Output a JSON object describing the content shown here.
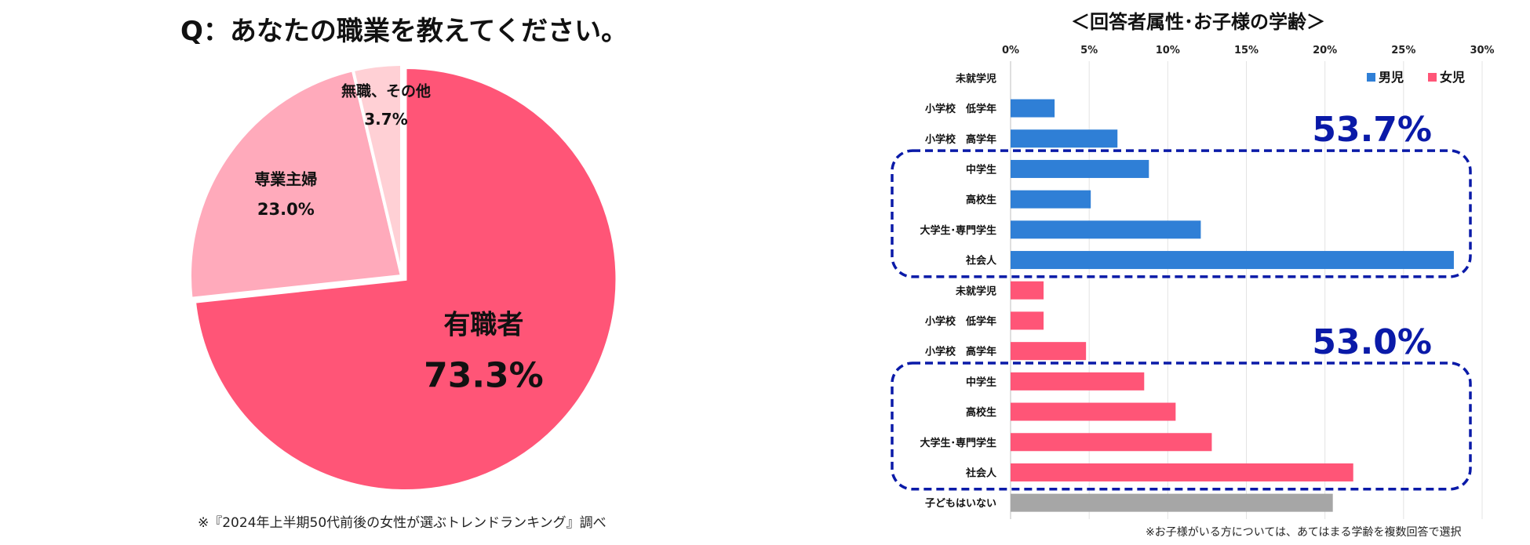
{
  "pie": {
    "title": "Q：あなたの職業を教えてください。",
    "source": "※『2024年上半期50代前後の女性が選ぶトレンドランキング』調べ"
  },
  "bar": {
    "title": "＜回答者属性･お子様の学齢＞",
    "note": "※お子様がいる方については、あてはまる学齢を複数回答で選択"
  },
  "chart_data": [
    {
      "type": "pie",
      "title": "Q：あなたの職業を教えてください。",
      "slices": [
        {
          "label": "有職者",
          "value": 73.3,
          "value_label": "73.3%",
          "color": "#ff5577"
        },
        {
          "label": "専業主婦",
          "value": 23.0,
          "value_label": "23.0%",
          "color": "#ffaabb"
        },
        {
          "label": "無職、その他",
          "value": 3.7,
          "value_label": "3.7%",
          "color": "#ffd0d5"
        }
      ]
    },
    {
      "type": "bar",
      "orientation": "horizontal",
      "title": "＜回答者属性･お子様の学齢＞",
      "xlim": [
        0,
        30
      ],
      "xticks": [
        0,
        5,
        10,
        15,
        20,
        25,
        30
      ],
      "tick_suffix": "%",
      "legend": [
        {
          "name": "男児",
          "color": "#2f7fd6"
        },
        {
          "name": "女児",
          "color": "#ff5577"
        }
      ],
      "legend_position": "top-right",
      "rows": [
        {
          "label": "未就学児",
          "value": 0.0,
          "group": "男児",
          "color": "#2f7fd6"
        },
        {
          "label": "小学校　低学年",
          "value": 2.8,
          "group": "男児",
          "color": "#2f7fd6"
        },
        {
          "label": "小学校　高学年",
          "value": 6.8,
          "group": "男児",
          "color": "#2f7fd6"
        },
        {
          "label": "中学生",
          "value": 8.8,
          "group": "男児",
          "color": "#2f7fd6"
        },
        {
          "label": "高校生",
          "value": 5.1,
          "group": "男児",
          "color": "#2f7fd6"
        },
        {
          "label": "大学生･専門学生",
          "value": 12.1,
          "group": "男児",
          "color": "#2f7fd6"
        },
        {
          "label": "社会人",
          "value": 28.2,
          "group": "男児",
          "color": "#2f7fd6"
        },
        {
          "label": "未就学児",
          "value": 2.1,
          "group": "女児",
          "color": "#ff5577"
        },
        {
          "label": "小学校　低学年",
          "value": 2.1,
          "group": "女児",
          "color": "#ff5577"
        },
        {
          "label": "小学校　高学年",
          "value": 4.8,
          "group": "女児",
          "color": "#ff5577"
        },
        {
          "label": "中学生",
          "value": 8.5,
          "group": "女児",
          "color": "#ff5577"
        },
        {
          "label": "高校生",
          "value": 10.5,
          "group": "女児",
          "color": "#ff5577"
        },
        {
          "label": "大学生･専門学生",
          "value": 12.8,
          "group": "女児",
          "color": "#ff5577"
        },
        {
          "label": "社会人",
          "value": 21.8,
          "group": "女児",
          "color": "#ff5577"
        },
        {
          "label": "子どもはいない",
          "value": 20.5,
          "group": "none",
          "color": "#a6a6a6"
        }
      ],
      "annotations": [
        {
          "text": "53.7%",
          "color": "#0a1aa8",
          "box_rows": [
            3,
            6
          ]
        },
        {
          "text": "53.0%",
          "color": "#0a1aa8",
          "box_rows": [
            10,
            13
          ]
        }
      ]
    }
  ]
}
